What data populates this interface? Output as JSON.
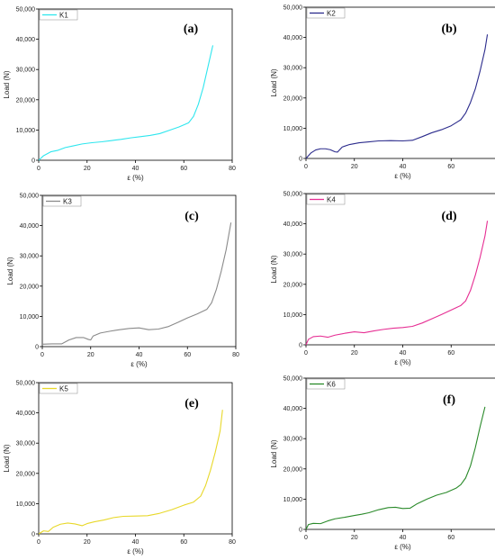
{
  "chart_data": [
    {
      "type": "line",
      "panel_label": "(a)",
      "xlabel": "ε (%)",
      "ylabel": "Load (N)",
      "xlim": [
        0,
        80
      ],
      "ylim": [
        0,
        50000
      ],
      "xticks": [
        "0",
        "20",
        "40",
        "60",
        "80"
      ],
      "yticks": [
        "0",
        "10,000",
        "20,000",
        "30,000",
        "40,000",
        "50,000"
      ],
      "legend_position": "top-left",
      "series": [
        {
          "name": "K1",
          "color": "#2ee6ee",
          "x": [
            0,
            2,
            5,
            8,
            11,
            14,
            18,
            22,
            26,
            30,
            34,
            38,
            42,
            46,
            50,
            54,
            58,
            62,
            64,
            66,
            68,
            70,
            72
          ],
          "y": [
            0,
            1500,
            2800,
            3300,
            4200,
            4700,
            5400,
            5800,
            6100,
            6500,
            6900,
            7400,
            7800,
            8200,
            8800,
            9900,
            11000,
            12400,
            14500,
            18500,
            24000,
            31000,
            38000
          ]
        }
      ]
    },
    {
      "type": "line",
      "panel_label": "(b)",
      "xlabel": "ε (%)",
      "ylabel": "Load (N)",
      "xlim": [
        0,
        80
      ],
      "ylim": [
        0,
        50000
      ],
      "xticks": [
        "0",
        "20",
        "40",
        "60",
        "80"
      ],
      "yticks": [
        "0",
        "10,000",
        "20,000",
        "30,000",
        "40,000",
        "50,000"
      ],
      "legend_position": "top-left",
      "series": [
        {
          "name": "K2",
          "color": "#2b2b8c",
          "x": [
            0,
            2,
            4,
            6,
            8,
            10,
            12,
            13,
            15,
            18,
            22,
            26,
            30,
            35,
            40,
            44,
            48,
            52,
            56,
            60,
            64,
            66,
            68,
            70,
            72,
            74,
            75
          ],
          "y": [
            0,
            1800,
            2800,
            3200,
            3200,
            2900,
            2200,
            2100,
            3800,
            4600,
            5200,
            5500,
            5800,
            5900,
            5800,
            6000,
            7200,
            8500,
            9500,
            10800,
            12800,
            15000,
            18500,
            23000,
            29000,
            36000,
            41000
          ]
        }
      ]
    },
    {
      "type": "line",
      "panel_label": "(c)",
      "xlabel": "ε (%)",
      "ylabel": "Load (N)",
      "xlim": [
        0,
        80
      ],
      "ylim": [
        0,
        50000
      ],
      "xticks": [
        "0",
        "20",
        "40",
        "60",
        "80"
      ],
      "yticks": [
        "0",
        "10,000",
        "20,000",
        "30,000",
        "40,000",
        "50,000"
      ],
      "legend_position": "top-left",
      "series": [
        {
          "name": "K3",
          "color": "#8a8a8a",
          "x": [
            0,
            4,
            8,
            11,
            14,
            17,
            19,
            20,
            21,
            24,
            28,
            32,
            36,
            40,
            44,
            48,
            52,
            56,
            60,
            64,
            68,
            70,
            72,
            74,
            76,
            78
          ],
          "y": [
            800,
            900,
            900,
            2200,
            3000,
            3000,
            2400,
            2200,
            3500,
            4500,
            5100,
            5600,
            6000,
            6200,
            5600,
            5800,
            6600,
            8000,
            9500,
            10800,
            12300,
            14500,
            19000,
            25000,
            32000,
            41000
          ]
        }
      ]
    },
    {
      "type": "line",
      "panel_label": "(d)",
      "xlabel": "ε (%)",
      "ylabel": "Load (N)",
      "xlim": [
        0,
        80
      ],
      "ylim": [
        0,
        50000
      ],
      "xticks": [
        "0",
        "20",
        "40",
        "60",
        "80"
      ],
      "yticks": [
        "0",
        "10,000",
        "20,000",
        "30,000",
        "40,000",
        "50,000"
      ],
      "legend_position": "top-left",
      "series": [
        {
          "name": "K4",
          "color": "#e62e93",
          "x": [
            0,
            1,
            3,
            6,
            9,
            12,
            16,
            20,
            24,
            28,
            32,
            36,
            40,
            44,
            48,
            52,
            56,
            60,
            64,
            66,
            68,
            70,
            72,
            74,
            75
          ],
          "y": [
            0,
            1800,
            2700,
            2900,
            2500,
            3200,
            3800,
            4300,
            4000,
            4600,
            5100,
            5500,
            5700,
            6100,
            7200,
            8600,
            10000,
            11500,
            13000,
            14500,
            18000,
            23000,
            29000,
            36000,
            41000
          ]
        }
      ]
    },
    {
      "type": "line",
      "panel_label": "(e)",
      "xlabel": "ε (%)",
      "ylabel": "Load (N)",
      "xlim": [
        0,
        80
      ],
      "ylim": [
        0,
        50000
      ],
      "xticks": [
        "0",
        "20",
        "40",
        "60",
        "80"
      ],
      "yticks": [
        "0",
        "10,000",
        "20,000",
        "30,000",
        "40,000",
        "50,000"
      ],
      "legend_position": "top-left",
      "series": [
        {
          "name": "K5",
          "color": "#e8d82a",
          "x": [
            0,
            2,
            4,
            6,
            9,
            12,
            15,
            18,
            20,
            23,
            27,
            31,
            35,
            40,
            45,
            50,
            55,
            60,
            64,
            67,
            69,
            71,
            73,
            75,
            76
          ],
          "y": [
            0,
            1000,
            800,
            2200,
            3200,
            3600,
            3300,
            2700,
            3400,
            4000,
            4600,
            5400,
            5800,
            5900,
            6000,
            6800,
            8000,
            9500,
            10500,
            12500,
            16000,
            21000,
            27000,
            34000,
            41000
          ]
        }
      ]
    },
    {
      "type": "line",
      "panel_label": "(f)",
      "xlabel": "ε (%)",
      "ylabel": "Load (N)",
      "xlim": [
        0,
        80
      ],
      "ylim": [
        0,
        50000
      ],
      "xticks": [
        "0",
        "20",
        "40",
        "60",
        "80"
      ],
      "yticks": [
        "0",
        "10,000",
        "20,000",
        "30,000",
        "40,000",
        "50,000"
      ],
      "legend_position": "top-left",
      "series": [
        {
          "name": "K6",
          "color": "#2a8a2a",
          "x": [
            0,
            1,
            3,
            6,
            9,
            12,
            16,
            20,
            23,
            26,
            30,
            34,
            37,
            40,
            43,
            46,
            50,
            54,
            58,
            62,
            64,
            66,
            68,
            70,
            72,
            74
          ],
          "y": [
            0,
            1600,
            2000,
            1900,
            2800,
            3500,
            4000,
            4600,
            5000,
            5500,
            6500,
            7200,
            7300,
            6900,
            7000,
            8500,
            10000,
            11300,
            12200,
            13600,
            14800,
            17000,
            21000,
            27000,
            34000,
            40500
          ]
        }
      ]
    }
  ]
}
